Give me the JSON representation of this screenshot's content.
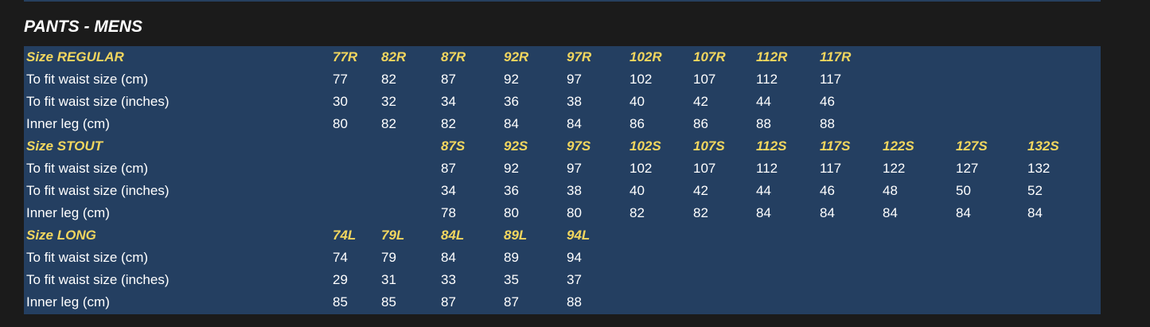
{
  "title": "PANTS - MENS",
  "colors": {
    "background": "#1b1b1b",
    "table": "#243f61",
    "header_text": "#f2d65e",
    "text": "#ffffff"
  },
  "rows": [
    {
      "type": "head",
      "label": "Size REGULAR",
      "cells": [
        "77R",
        "82R",
        "87R",
        "92R",
        "97R",
        "102R",
        "107R",
        "112R",
        "117R",
        "",
        "",
        ""
      ]
    },
    {
      "type": "data",
      "label": "To fit waist size (cm)",
      "cells": [
        "77",
        "82",
        "87",
        "92",
        "97",
        "102",
        "107",
        "112",
        "117",
        "",
        "",
        ""
      ]
    },
    {
      "type": "data",
      "label": "To fit waist size (inches)",
      "cells": [
        "30",
        "32",
        "34",
        "36",
        "38",
        "40",
        "42",
        "44",
        "46",
        "",
        "",
        ""
      ]
    },
    {
      "type": "data",
      "label": "Inner leg (cm)",
      "cells": [
        "80",
        "82",
        "82",
        "84",
        "84",
        "86",
        "86",
        "88",
        "88",
        "",
        "",
        ""
      ]
    },
    {
      "type": "head",
      "label": "Size STOUT",
      "cells": [
        "",
        "",
        "87S",
        "92S",
        "97S",
        "102S",
        "107S",
        "112S",
        "117S",
        "122S",
        "127S",
        "132S"
      ]
    },
    {
      "type": "data",
      "label": "To fit waist size (cm)",
      "cells": [
        "",
        "",
        "87",
        "92",
        "97",
        "102",
        "107",
        "112",
        "117",
        "122",
        "127",
        "132"
      ]
    },
    {
      "type": "data",
      "label": "To fit waist size (inches)",
      "cells": [
        "",
        "",
        "34",
        "36",
        "38",
        "40",
        "42",
        "44",
        "46",
        "48",
        "50",
        "52"
      ]
    },
    {
      "type": "data",
      "label": "Inner leg (cm)",
      "cells": [
        "",
        "",
        "78",
        "80",
        "80",
        "82",
        "82",
        "84",
        "84",
        "84",
        "84",
        "84"
      ]
    },
    {
      "type": "head",
      "label": "Size LONG",
      "cells": [
        "74L",
        "79L",
        "84L",
        "89L",
        "94L",
        "",
        "",
        "",
        "",
        "",
        "",
        ""
      ]
    },
    {
      "type": "data",
      "label": "To fit waist size (cm)",
      "cells": [
        "74",
        "79",
        "84",
        "89",
        "94",
        "",
        "",
        "",
        "",
        "",
        "",
        ""
      ]
    },
    {
      "type": "data",
      "label": "To fit waist size (inches)",
      "cells": [
        "29",
        "31",
        "33",
        "35",
        "37",
        "",
        "",
        "",
        "",
        "",
        "",
        ""
      ]
    },
    {
      "type": "data",
      "label": "Inner leg (cm)",
      "cells": [
        "85",
        "85",
        "87",
        "87",
        "88",
        "",
        "",
        "",
        "",
        "",
        "",
        ""
      ]
    }
  ]
}
